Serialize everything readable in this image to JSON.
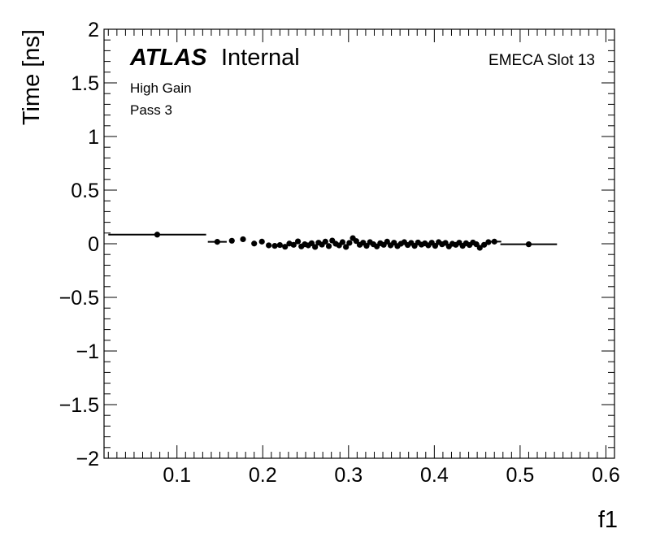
{
  "chart_data": {
    "type": "scatter",
    "xlabel": "f1",
    "ylabel": "Time [ns]",
    "xlim": [
      0.015,
      0.61
    ],
    "ylim": [
      -2,
      2
    ],
    "x_ticks": [
      0.1,
      0.2,
      0.3,
      0.4,
      0.5,
      0.6
    ],
    "x_tick_labels": [
      "0.1",
      "0.2",
      "0.3",
      "0.4",
      "0.5",
      "0.6"
    ],
    "y_ticks": [
      -2,
      -1.5,
      -1,
      -0.5,
      0,
      0.5,
      1,
      1.5,
      2
    ],
    "y_tick_labels": [
      "−2",
      "−1.5",
      "−1",
      "−0.5",
      "0",
      "0.5",
      "1",
      "1.5",
      "2"
    ],
    "grid": false,
    "annotations": {
      "atlas": "ATLAS",
      "internal": "Internal",
      "region": "EMECA Slot 13",
      "gain": "High Gain",
      "pass": "Pass 3"
    },
    "series": [
      {
        "marker": "circle",
        "color": "#000000",
        "points": [
          {
            "x": 0.077,
            "y": 0.085,
            "xerr": 0.057
          },
          {
            "x": 0.147,
            "y": 0.018,
            "xerr": 0.011
          },
          {
            "x": 0.164,
            "y": 0.028
          },
          {
            "x": 0.177,
            "y": 0.042
          },
          {
            "x": 0.19,
            "y": 0.002
          },
          {
            "x": 0.199,
            "y": 0.02
          },
          {
            "x": 0.207,
            "y": -0.015
          },
          {
            "x": 0.214,
            "y": -0.02
          },
          {
            "x": 0.22,
            "y": -0.012
          },
          {
            "x": 0.226,
            "y": -0.028
          },
          {
            "x": 0.231,
            "y": 0.002
          },
          {
            "x": 0.236,
            "y": -0.01
          },
          {
            "x": 0.241,
            "y": 0.022
          },
          {
            "x": 0.245,
            "y": -0.025
          },
          {
            "x": 0.249,
            "y": -0.005
          },
          {
            "x": 0.253,
            "y": -0.015
          },
          {
            "x": 0.257,
            "y": 0.005
          },
          {
            "x": 0.261,
            "y": -0.03
          },
          {
            "x": 0.265,
            "y": 0.01
          },
          {
            "x": 0.269,
            "y": -0.008
          },
          {
            "x": 0.273,
            "y": 0.02
          },
          {
            "x": 0.277,
            "y": -0.022
          },
          {
            "x": 0.281,
            "y": 0.03
          },
          {
            "x": 0.285,
            "y": 0.0
          },
          {
            "x": 0.289,
            "y": -0.015
          },
          {
            "x": 0.293,
            "y": 0.015
          },
          {
            "x": 0.297,
            "y": -0.03
          },
          {
            "x": 0.301,
            "y": 0.008
          },
          {
            "x": 0.305,
            "y": 0.052
          },
          {
            "x": 0.309,
            "y": 0.025
          },
          {
            "x": 0.313,
            "y": -0.01
          },
          {
            "x": 0.317,
            "y": 0.01
          },
          {
            "x": 0.321,
            "y": -0.02
          },
          {
            "x": 0.325,
            "y": 0.015
          },
          {
            "x": 0.329,
            "y": -0.005
          },
          {
            "x": 0.333,
            "y": -0.025
          },
          {
            "x": 0.337,
            "y": 0.005
          },
          {
            "x": 0.341,
            "y": -0.01
          },
          {
            "x": 0.345,
            "y": 0.02
          },
          {
            "x": 0.349,
            "y": -0.015
          },
          {
            "x": 0.353,
            "y": 0.01
          },
          {
            "x": 0.357,
            "y": -0.022
          },
          {
            "x": 0.361,
            "y": 0.0
          },
          {
            "x": 0.365,
            "y": 0.015
          },
          {
            "x": 0.369,
            "y": -0.012
          },
          {
            "x": 0.373,
            "y": 0.008
          },
          {
            "x": 0.377,
            "y": -0.02
          },
          {
            "x": 0.381,
            "y": 0.012
          },
          {
            "x": 0.385,
            "y": -0.008
          },
          {
            "x": 0.389,
            "y": 0.004
          },
          {
            "x": 0.393,
            "y": -0.015
          },
          {
            "x": 0.397,
            "y": 0.01
          },
          {
            "x": 0.401,
            "y": -0.02
          },
          {
            "x": 0.405,
            "y": 0.015
          },
          {
            "x": 0.409,
            "y": -0.005
          },
          {
            "x": 0.413,
            "y": 0.008
          },
          {
            "x": 0.417,
            "y": -0.025
          },
          {
            "x": 0.421,
            "y": 0.0
          },
          {
            "x": 0.425,
            "y": -0.01
          },
          {
            "x": 0.429,
            "y": 0.01
          },
          {
            "x": 0.433,
            "y": -0.02
          },
          {
            "x": 0.437,
            "y": 0.005
          },
          {
            "x": 0.441,
            "y": -0.012
          },
          {
            "x": 0.445,
            "y": 0.012
          },
          {
            "x": 0.449,
            "y": -0.005
          },
          {
            "x": 0.453,
            "y": -0.038
          },
          {
            "x": 0.458,
            "y": -0.01
          },
          {
            "x": 0.463,
            "y": 0.015
          },
          {
            "x": 0.47,
            "y": 0.02,
            "xerr": 0.008
          },
          {
            "x": 0.51,
            "y": -0.005,
            "xerr": 0.033
          }
        ]
      }
    ]
  }
}
